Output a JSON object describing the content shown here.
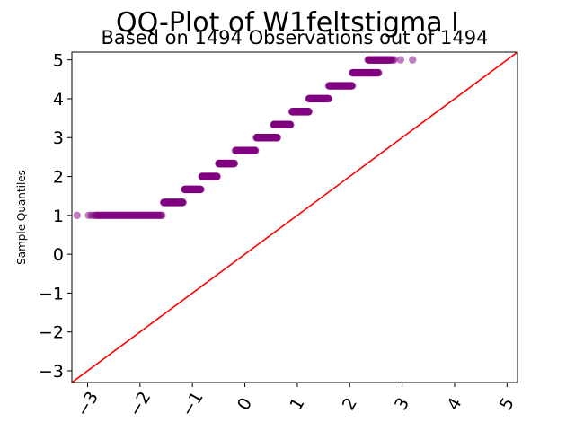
{
  "chart_data": {
    "type": "scatter",
    "title": "QQ-Plot of W1feltstigma I",
    "subtitle": "Based on 1494 Observations out of 1494",
    "xlabel": "",
    "ylabel": "Sample Quantiles",
    "xlim": [
      -3.3,
      5.2
    ],
    "ylim": [
      -3.3,
      5.2
    ],
    "xticks": [
      "−3",
      "−2",
      "−1",
      "0",
      "1",
      "2",
      "3",
      "4",
      "5"
    ],
    "yticks": [
      "−3",
      "−2",
      "−1",
      "0",
      "1",
      "2",
      "3",
      "4",
      "5"
    ],
    "grid": false,
    "point_color": "#800080",
    "reference_line_color": "#ff0000",
    "reference_line": {
      "x": [
        -3.3,
        5.2
      ],
      "y": [
        -3.3,
        5.2
      ]
    },
    "series": [
      {
        "segments": [
          {
            "y": 1.0,
            "x_from": -2.85,
            "x_to": -1.58,
            "outliers_x": [
              -3.2,
              -2.98,
              -2.93,
              -2.88
            ]
          },
          {
            "y": 1.333,
            "x_from": -1.55,
            "x_to": -1.18
          },
          {
            "y": 1.667,
            "x_from": -1.15,
            "x_to": -0.84
          },
          {
            "y": 2.0,
            "x_from": -0.82,
            "x_to": -0.53
          },
          {
            "y": 2.333,
            "x_from": -0.5,
            "x_to": -0.2
          },
          {
            "y": 2.667,
            "x_from": -0.18,
            "x_to": 0.2
          },
          {
            "y": 3.0,
            "x_from": 0.22,
            "x_to": 0.62
          },
          {
            "y": 3.333,
            "x_from": 0.55,
            "x_to": 0.87
          },
          {
            "y": 3.667,
            "x_from": 0.9,
            "x_to": 1.22
          },
          {
            "y": 4.0,
            "x_from": 1.22,
            "x_to": 1.6
          },
          {
            "y": 4.333,
            "x_from": 1.6,
            "x_to": 2.05
          },
          {
            "y": 4.667,
            "x_from": 2.05,
            "x_to": 2.55
          },
          {
            "y": 5.0,
            "x_from": 2.35,
            "x_to": 2.78,
            "outliers_x": [
              2.8,
              2.82,
              2.85,
              2.97,
              3.2
            ]
          }
        ]
      }
    ]
  }
}
